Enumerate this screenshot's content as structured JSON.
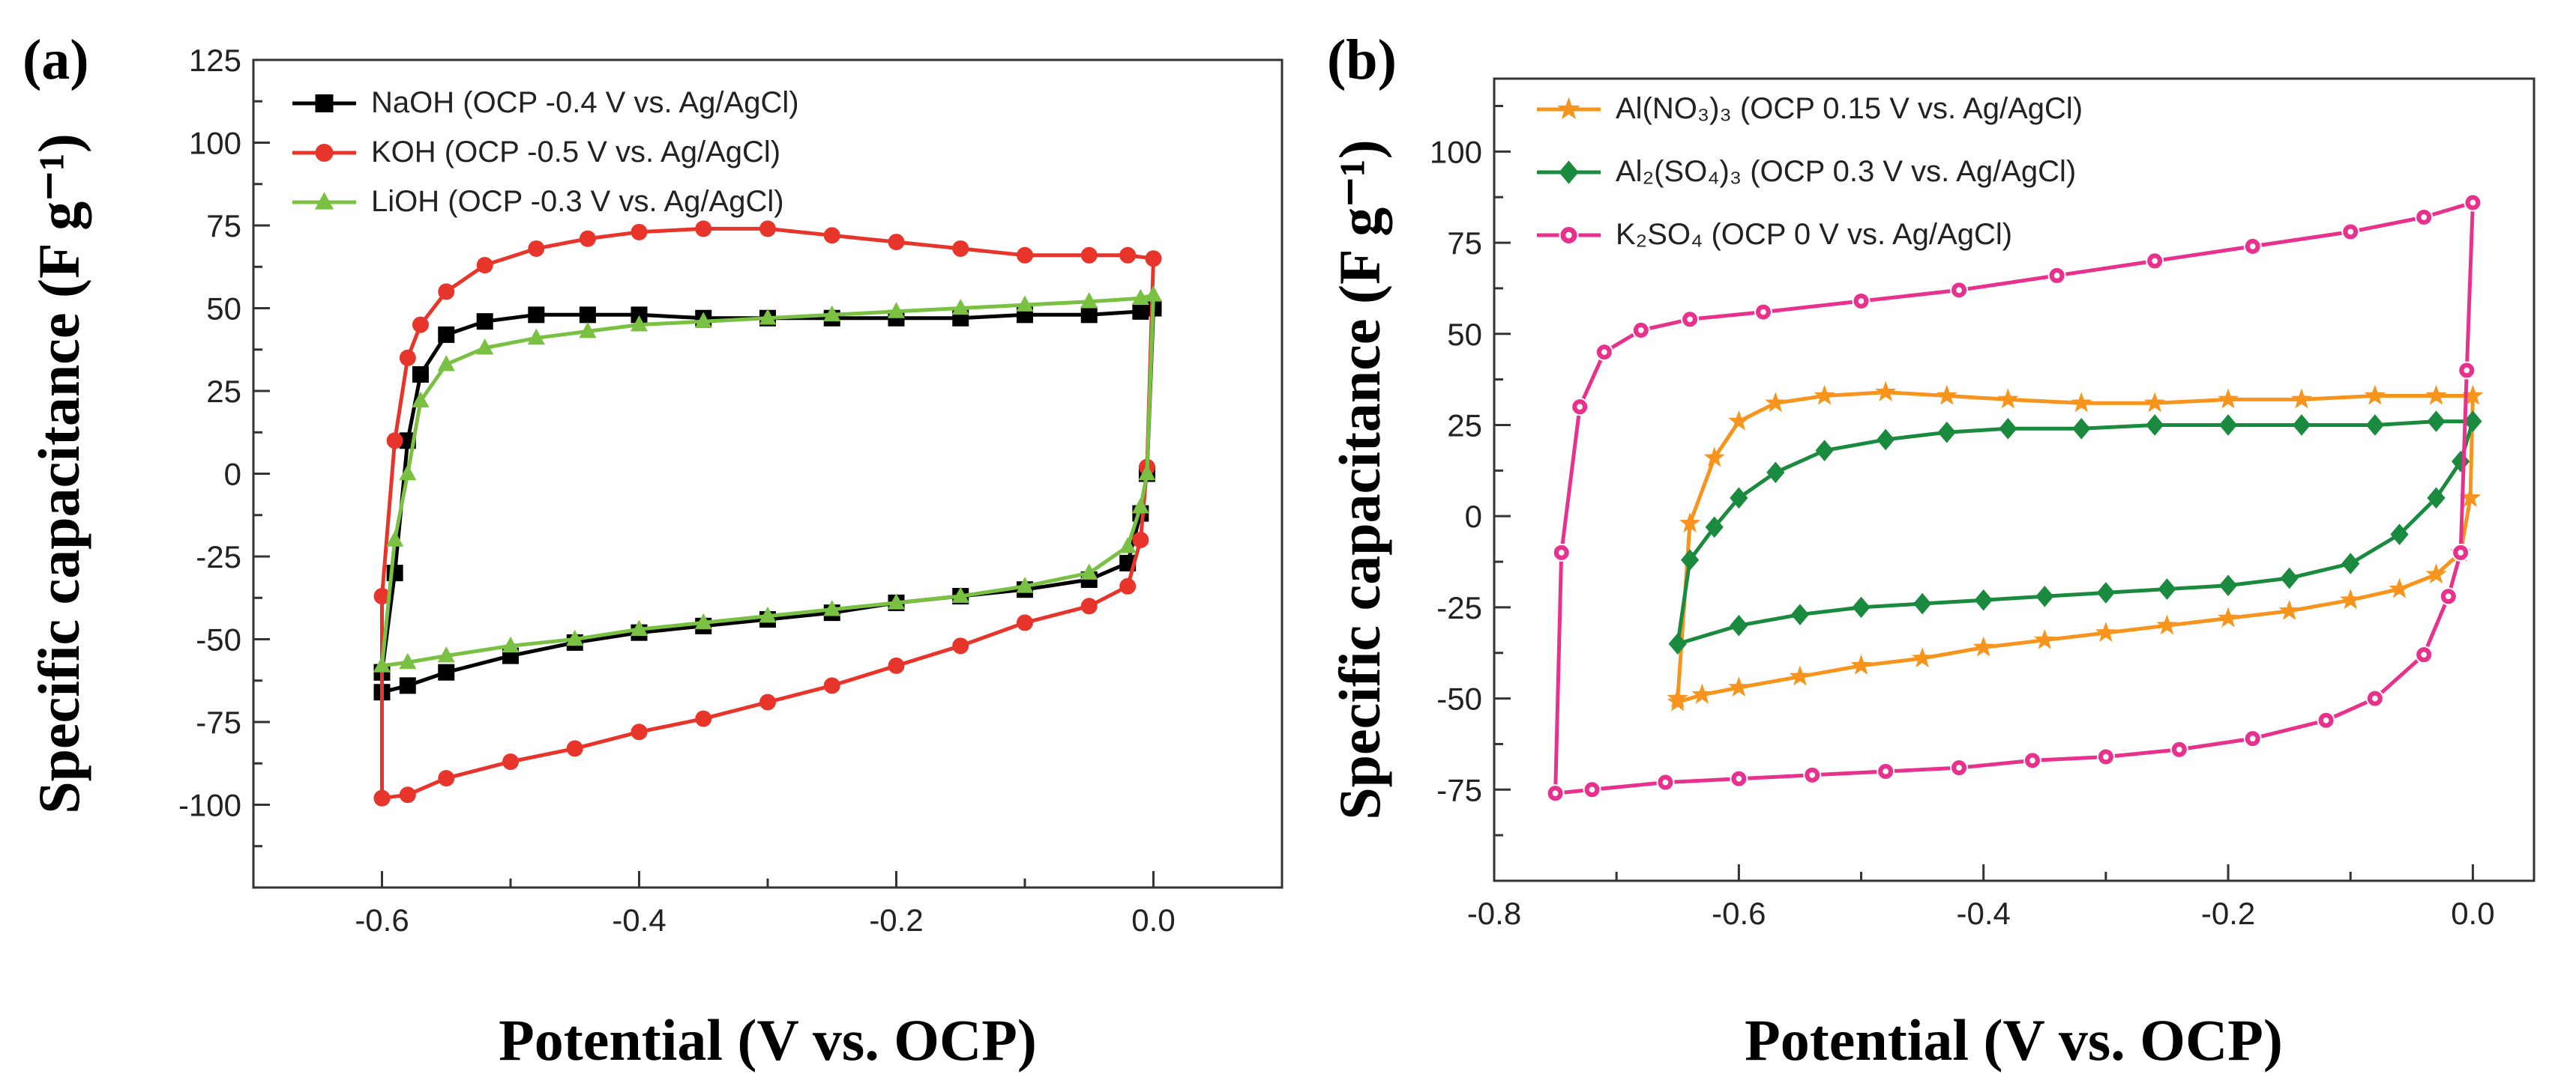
{
  "chart_data": [
    {
      "type": "line",
      "panel_label": "(a)",
      "xlabel": "Potential (V vs. OCP)",
      "ylabel": "Specific capacitance (F g⁻¹)",
      "xlim": [
        -0.7,
        0.1
      ],
      "ylim": [
        -125,
        125
      ],
      "x_ticks": [
        -0.6,
        -0.4,
        -0.2,
        0.0
      ],
      "x_tick_labels": [
        "-0.6",
        "-0.4",
        "-0.2",
        "0.0"
      ],
      "y_ticks": [
        -100,
        -75,
        -50,
        -25,
        0,
        25,
        50,
        75,
        100,
        125
      ],
      "y_tick_labels": [
        "-100",
        "-75",
        "-50",
        "-25",
        "0",
        "25",
        "50",
        "75",
        "100",
        "125"
      ],
      "legend_position": "top-left",
      "series": [
        {
          "name": "NaOH (OCP -0.4 V vs. Ag/AgCl)",
          "color": "#000000",
          "marker": "square",
          "x": [
            -0.6,
            -0.59,
            -0.58,
            -0.57,
            -0.55,
            -0.52,
            -0.48,
            -0.44,
            -0.4,
            -0.35,
            -0.3,
            -0.25,
            -0.2,
            -0.15,
            -0.1,
            -0.05,
            -0.01,
            0.0,
            -0.005,
            -0.01,
            -0.02,
            -0.05,
            -0.1,
            -0.15,
            -0.2,
            -0.25,
            -0.3,
            -0.35,
            -0.4,
            -0.45,
            -0.5,
            -0.55,
            -0.58,
            -0.6,
            -0.6
          ],
          "y": [
            -60,
            -30,
            10,
            30,
            42,
            46,
            48,
            48,
            48,
            47,
            47,
            47,
            47,
            47,
            48,
            48,
            49,
            50,
            0,
            -12,
            -27,
            -32,
            -35,
            -37,
            -39,
            -42,
            -44,
            -46,
            -48,
            -51,
            -55,
            -60,
            -64,
            -66,
            -60
          ]
        },
        {
          "name": "KOH (OCP -0.5 V vs. Ag/AgCl)",
          "color": "#e8352c",
          "marker": "circle",
          "x": [
            -0.6,
            -0.6,
            -0.59,
            -0.58,
            -0.57,
            -0.55,
            -0.52,
            -0.48,
            -0.44,
            -0.4,
            -0.35,
            -0.3,
            -0.25,
            -0.2,
            -0.15,
            -0.1,
            -0.05,
            -0.02,
            0.0,
            -0.005,
            -0.01,
            -0.02,
            -0.05,
            -0.1,
            -0.15,
            -0.2,
            -0.25,
            -0.3,
            -0.35,
            -0.4,
            -0.45,
            -0.5,
            -0.55,
            -0.58,
            -0.6
          ],
          "y": [
            -98,
            -37,
            10,
            35,
            45,
            55,
            63,
            68,
            71,
            73,
            74,
            74,
            72,
            70,
            68,
            66,
            66,
            66,
            65,
            2,
            -20,
            -34,
            -40,
            -45,
            -52,
            -58,
            -64,
            -69,
            -74,
            -78,
            -83,
            -87,
            -92,
            -97,
            -98
          ]
        },
        {
          "name": "LiOH (OCP -0.3 V vs. Ag/AgCl)",
          "color": "#7ac143",
          "marker": "triangle",
          "x": [
            -0.6,
            -0.59,
            -0.58,
            -0.57,
            -0.55,
            -0.52,
            -0.48,
            -0.44,
            -0.4,
            -0.35,
            -0.3,
            -0.25,
            -0.2,
            -0.15,
            -0.1,
            -0.05,
            -0.01,
            0.0,
            -0.005,
            -0.01,
            -0.02,
            -0.05,
            -0.1,
            -0.15,
            -0.2,
            -0.25,
            -0.3,
            -0.35,
            -0.4,
            -0.45,
            -0.5,
            -0.55,
            -0.58,
            -0.6
          ],
          "y": [
            -58,
            -20,
            0,
            22,
            33,
            38,
            41,
            43,
            45,
            46,
            47,
            48,
            49,
            50,
            51,
            52,
            53,
            54,
            0,
            -10,
            -22,
            -30,
            -34,
            -37,
            -39,
            -41,
            -43,
            -45,
            -47,
            -50,
            -52,
            -55,
            -57,
            -58
          ]
        }
      ]
    },
    {
      "type": "line",
      "panel_label": "(b)",
      "xlabel": "Potential (V vs. OCP)",
      "ylabel": "Specific capacitance (F g⁻¹)",
      "xlim": [
        -0.8,
        0.05
      ],
      "ylim": [
        -100,
        120
      ],
      "x_ticks": [
        -0.8,
        -0.6,
        -0.4,
        -0.2,
        0.0
      ],
      "x_tick_labels": [
        "-0.8",
        "-0.6",
        "-0.4",
        "-0.2",
        "0.0"
      ],
      "y_ticks": [
        -75,
        -50,
        -25,
        0,
        25,
        50,
        75,
        100
      ],
      "y_tick_labels": [
        "-75",
        "-50",
        "-25",
        "0",
        "25",
        "50",
        "75",
        "100"
      ],
      "legend_position": "top-left",
      "series": [
        {
          "name": "Al(NO₃)₃ (OCP 0.15 V vs. Ag/AgCl)",
          "color": "#f7941d",
          "marker": "star",
          "x": [
            -0.65,
            -0.64,
            -0.62,
            -0.6,
            -0.57,
            -0.53,
            -0.48,
            -0.43,
            -0.38,
            -0.32,
            -0.26,
            -0.2,
            -0.14,
            -0.08,
            -0.03,
            0.0,
            -0.002,
            -0.01,
            -0.03,
            -0.06,
            -0.1,
            -0.15,
            -0.2,
            -0.25,
            -0.3,
            -0.35,
            -0.4,
            -0.45,
            -0.5,
            -0.55,
            -0.6,
            -0.63,
            -0.65
          ],
          "y": [
            -50,
            -2,
            16,
            26,
            31,
            33,
            34,
            33,
            32,
            31,
            31,
            32,
            32,
            33,
            33,
            33,
            5,
            -10,
            -16,
            -20,
            -23,
            -26,
            -28,
            -30,
            -32,
            -34,
            -36,
            -39,
            -41,
            -44,
            -47,
            -49,
            -51
          ]
        },
        {
          "name": "Al₂(SO₄)₃ (OCP 0.3 V vs. Ag/AgCl)",
          "color": "#1a8a3f",
          "marker": "diamond",
          "x": [
            -0.65,
            -0.64,
            -0.62,
            -0.6,
            -0.57,
            -0.53,
            -0.48,
            -0.43,
            -0.38,
            -0.32,
            -0.26,
            -0.2,
            -0.14,
            -0.08,
            -0.03,
            0.0,
            -0.01,
            -0.03,
            -0.06,
            -0.1,
            -0.15,
            -0.2,
            -0.25,
            -0.3,
            -0.35,
            -0.4,
            -0.45,
            -0.5,
            -0.55,
            -0.6,
            -0.65
          ],
          "y": [
            -35,
            -12,
            -3,
            5,
            12,
            18,
            21,
            23,
            24,
            24,
            25,
            25,
            25,
            25,
            26,
            26,
            15,
            5,
            -5,
            -13,
            -17,
            -19,
            -20,
            -21,
            -22,
            -23,
            -24,
            -25,
            -27,
            -30,
            -35
          ]
        },
        {
          "name": "K₂SO₄ (OCP 0 V vs. Ag/AgCl)",
          "color": "#e8318d",
          "marker": "hexagon",
          "x": [
            -0.75,
            -0.745,
            -0.73,
            -0.71,
            -0.68,
            -0.64,
            -0.58,
            -0.5,
            -0.42,
            -0.34,
            -0.26,
            -0.18,
            -0.1,
            -0.04,
            0.0,
            -0.005,
            -0.01,
            -0.02,
            -0.04,
            -0.08,
            -0.12,
            -0.18,
            -0.24,
            -0.3,
            -0.36,
            -0.42,
            -0.48,
            -0.54,
            -0.6,
            -0.66,
            -0.72,
            -0.75
          ],
          "y": [
            -76,
            -10,
            30,
            45,
            51,
            54,
            56,
            59,
            62,
            66,
            70,
            74,
            78,
            82,
            86,
            40,
            -10,
            -22,
            -38,
            -50,
            -56,
            -61,
            -64,
            -66,
            -67,
            -69,
            -70,
            -71,
            -72,
            -73,
            -75,
            -76
          ]
        }
      ]
    }
  ]
}
